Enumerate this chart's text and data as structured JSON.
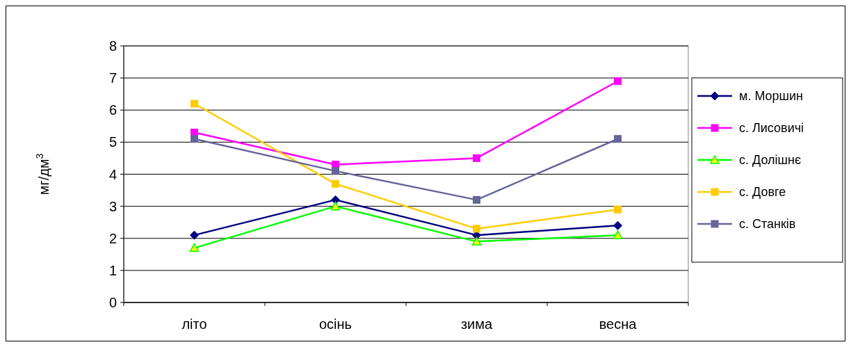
{
  "chart_data": {
    "type": "line",
    "ylabel": "мг/дм$^{3}$",
    "categories": [
      "літо",
      "осінь",
      "зима",
      "весна"
    ],
    "ylim": [
      0,
      8
    ],
    "yticks": [
      0,
      1,
      2,
      3,
      4,
      5,
      6,
      7,
      8
    ],
    "grid": "y",
    "legend": "right",
    "series": [
      {
        "name": "м. Моршин",
        "color": "#000080",
        "marker": "diamond",
        "values": [
          2.1,
          3.2,
          2.1,
          2.4
        ]
      },
      {
        "name": "с. Лисовичі",
        "color": "#ff00ff",
        "marker": "square",
        "values": [
          5.3,
          4.3,
          4.5,
          6.9
        ]
      },
      {
        "name": "с. Долішнє",
        "color": "#00ff00",
        "marker": "triangle",
        "values": [
          1.7,
          3.0,
          1.9,
          2.1
        ]
      },
      {
        "name": "с. Довге",
        "color": "#ffcc00",
        "marker": "square",
        "values": [
          6.2,
          3.7,
          2.3,
          2.9
        ]
      },
      {
        "name": "с. Станків",
        "color": "#666699",
        "marker": "square",
        "values": [
          5.1,
          4.1,
          3.2,
          5.1
        ]
      }
    ]
  }
}
